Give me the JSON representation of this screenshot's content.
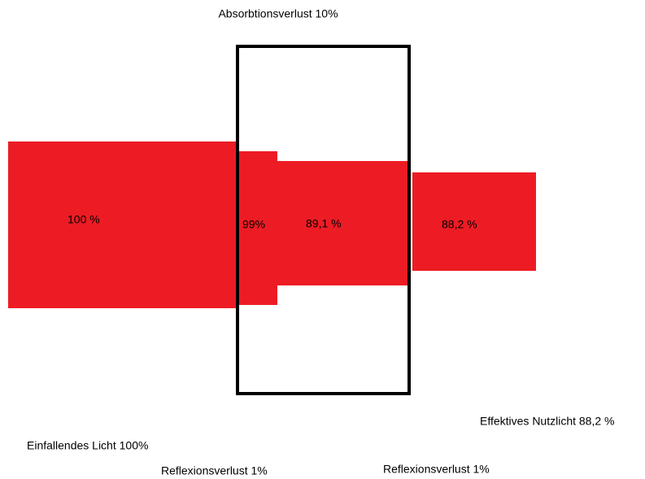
{
  "title": "Absorbtionsverlust 10%",
  "segments": [
    {
      "label": "100 %"
    },
    {
      "label": "99%"
    },
    {
      "label": "89,1 %"
    },
    {
      "label": "88,2 %"
    }
  ],
  "notes": {
    "effective": "Effektives Nutzlicht 88,2 %",
    "incident": "Einfallendes Licht 100%",
    "reflection_front": "Reflexionsverlust 1%",
    "reflection_back": "Reflexionsverlust 1%"
  }
}
